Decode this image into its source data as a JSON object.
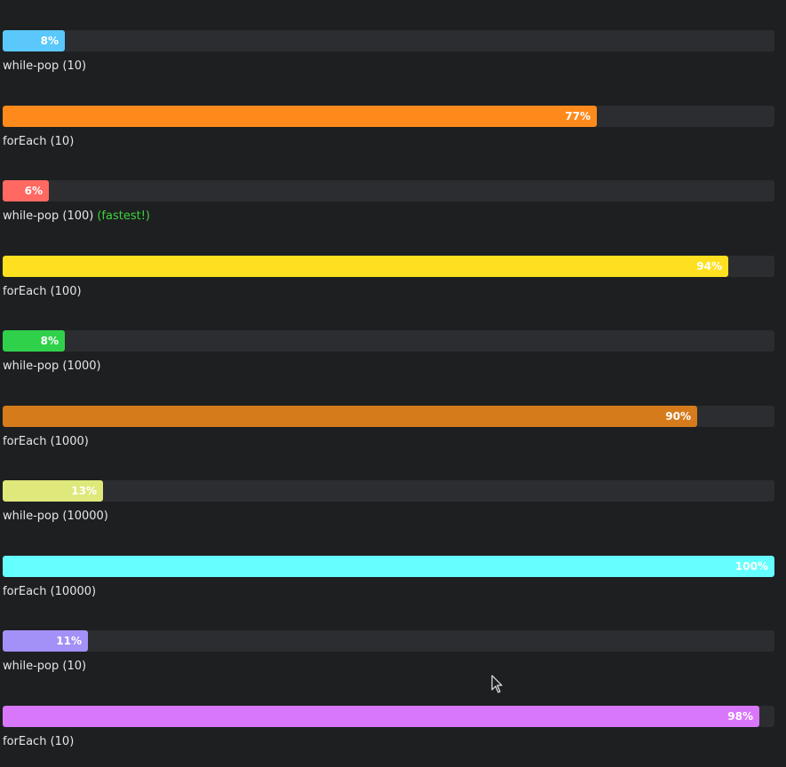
{
  "benchmarks": [
    {
      "label": "while-pop (10)",
      "percent_text": "8%",
      "fraction": 0.08,
      "color": "#5ac8fa",
      "note": ""
    },
    {
      "label": "forEach (10)",
      "percent_text": "77%",
      "fraction": 0.77,
      "color": "#ff8a1c",
      "note": ""
    },
    {
      "label": "while-pop (100)",
      "percent_text": "6%",
      "fraction": 0.06,
      "color": "#ff6961",
      "note": "(fastest!)"
    },
    {
      "label": "forEach (100)",
      "percent_text": "94%",
      "fraction": 0.94,
      "color": "#ffe020",
      "note": ""
    },
    {
      "label": "while-pop (1000)",
      "percent_text": "8%",
      "fraction": 0.08,
      "color": "#2fd14a",
      "note": ""
    },
    {
      "label": "forEach (1000)",
      "percent_text": "90%",
      "fraction": 0.9,
      "color": "#d67b1c",
      "note": ""
    },
    {
      "label": "while-pop (10000)",
      "percent_text": "13%",
      "fraction": 0.13,
      "color": "#dfe87a",
      "note": ""
    },
    {
      "label": "forEach (10000)",
      "percent_text": "100%",
      "fraction": 1.0,
      "color": "#66ffff",
      "note": ""
    },
    {
      "label": "while-pop (10)",
      "percent_text": "11%",
      "fraction": 0.11,
      "color": "#a391f7",
      "note": ""
    },
    {
      "label": "forEach (10)",
      "percent_text": "98%",
      "fraction": 0.98,
      "color": "#d977fb",
      "note": ""
    }
  ],
  "colors": {
    "background": "#1e1f21",
    "track": "#2c2d30",
    "label_text": "#e6e6e6",
    "fastest_note": "#3cd23c"
  }
}
